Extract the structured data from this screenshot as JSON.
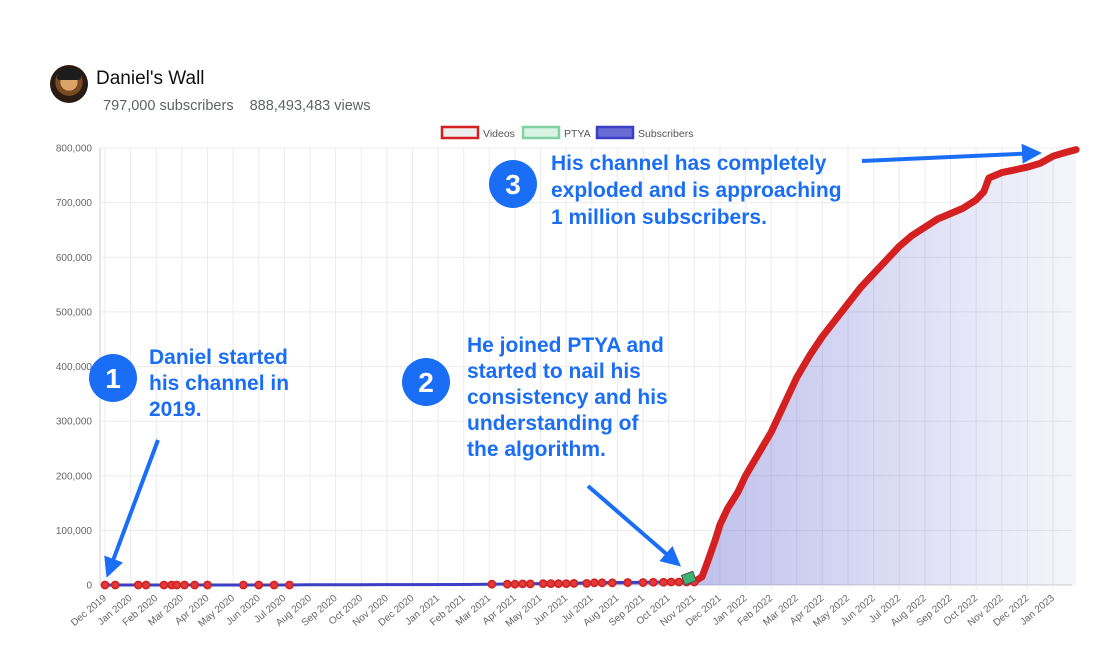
{
  "channel": {
    "name": "Daniel's Wall",
    "subscribers": "797,000 subscribers",
    "views": "888,493,483 views"
  },
  "chart_data": {
    "type": "line",
    "x_tick_labels": [
      "Dec 2019",
      "Jan 2020",
      "Feb 2020",
      "Mar 2020",
      "Apr 2020",
      "May 2020",
      "Jun 2020",
      "Jul 2020",
      "Aug 2020",
      "Sep 2020",
      "Oct 2020",
      "Nov 2020",
      "Dec 2020",
      "Jan 2021",
      "Feb 2021",
      "Mar 2021",
      "Apr 2021",
      "May 2021",
      "Jun 2021",
      "Jul 2021",
      "Aug 2021",
      "Sep 2021",
      "Oct 2021",
      "Nov 2021",
      "Dec 2021",
      "Jan 2022",
      "Feb 2022",
      "Mar 2022",
      "Apr 2022",
      "May 2022",
      "Jun 2022",
      "Jul 2022",
      "Aug 2022",
      "Sep 2022",
      "Oct 2022",
      "Nov 2022",
      "Dec 2022",
      "Jan 2023"
    ],
    "y_tick_labels": [
      "0",
      "100,000",
      "200,000",
      "300,000",
      "400,000",
      "500,000",
      "600,000",
      "700,000",
      "800,000"
    ],
    "ylim": [
      0,
      800000
    ],
    "legend": [
      "Videos",
      "PTYA",
      "Subscribers"
    ],
    "legend_position": "top",
    "grid": true,
    "series": [
      {
        "name": "Subscribers",
        "color": "#3b3fc4",
        "fill": true,
        "points": [
          [
            0.0,
            0
          ],
          [
            7.0,
            0
          ],
          [
            8.0,
            500
          ],
          [
            10.0,
            600
          ],
          [
            12.0,
            800
          ],
          [
            14.0,
            1000
          ],
          [
            15.0,
            1500
          ],
          [
            16.0,
            2000
          ],
          [
            17.0,
            2500
          ],
          [
            18.0,
            3000
          ],
          [
            19.0,
            4000
          ],
          [
            20.0,
            4500
          ],
          [
            21.0,
            5000
          ],
          [
            22.0,
            5500
          ],
          [
            23.0,
            6000
          ],
          [
            23.3,
            15000
          ],
          [
            23.5,
            40000
          ],
          [
            23.8,
            80000
          ],
          [
            24.0,
            110000
          ],
          [
            24.3,
            140000
          ],
          [
            24.7,
            170000
          ],
          [
            25.0,
            200000
          ],
          [
            25.5,
            240000
          ],
          [
            26.0,
            280000
          ],
          [
            26.5,
            330000
          ],
          [
            27.0,
            380000
          ],
          [
            27.5,
            420000
          ],
          [
            28.0,
            455000
          ],
          [
            28.5,
            485000
          ],
          [
            29.0,
            515000
          ],
          [
            29.5,
            545000
          ],
          [
            30.0,
            570000
          ],
          [
            30.5,
            595000
          ],
          [
            31.0,
            620000
          ],
          [
            31.5,
            640000
          ],
          [
            32.0,
            655000
          ],
          [
            32.5,
            670000
          ],
          [
            33.0,
            680000
          ],
          [
            33.5,
            690000
          ],
          [
            34.0,
            705000
          ],
          [
            34.3,
            720000
          ],
          [
            34.5,
            745000
          ],
          [
            35.0,
            755000
          ],
          [
            35.5,
            760000
          ],
          [
            36.0,
            765000
          ],
          [
            36.5,
            772000
          ],
          [
            37.0,
            785000
          ],
          [
            37.5,
            792000
          ],
          [
            37.9,
            797000
          ]
        ]
      },
      {
        "name": "Videos",
        "color": "#d42020",
        "marker": "circle",
        "x": [
          0.0,
          0.4,
          1.3,
          1.6,
          2.3,
          2.6,
          2.8,
          3.1,
          3.5,
          4.0,
          5.4,
          6.0,
          6.6,
          7.2,
          15.1,
          15.7,
          16.0,
          16.3,
          16.6,
          17.1,
          17.4,
          17.7,
          18.0,
          18.3,
          18.8,
          19.1,
          19.4,
          19.8,
          20.4,
          21.0,
          21.4,
          21.8,
          22.1,
          22.4,
          22.7,
          23.0
        ]
      },
      {
        "name": "PTYA",
        "color": "#3cb371",
        "x": [
          22.8
        ]
      }
    ]
  },
  "annotations": [
    {
      "number": "1",
      "lines": [
        "Daniel started",
        "his channel in",
        "2019."
      ]
    },
    {
      "number": "2",
      "lines": [
        "He joined PTYA and",
        "started to nail his",
        "consistency and his",
        "understanding of",
        "the algorithm."
      ]
    },
    {
      "number": "3",
      "lines": [
        "His channel has completely",
        "exploded and is approaching",
        "1 million subscribers."
      ]
    }
  ],
  "colors": {
    "annotation_blue": "#1a6ef5",
    "videos_red": "#d42020",
    "subscribers_blue": "#3b3fc4",
    "ptya_green": "#3cb371"
  }
}
